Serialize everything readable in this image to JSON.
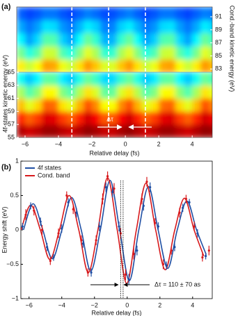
{
  "chart_data": [
    {
      "type": "heatmap",
      "panel_label": "(a)",
      "xlabel": "Relative delay (fs)",
      "ylabel": "4f-states kinetic energy (eV)",
      "y2label": "Cond.-band kinetic energy (eV)",
      "annotation": "Δτ",
      "colormap": "jet",
      "zlim": [
        0,
        1
      ],
      "xlim": [
        -6.5,
        5.2
      ],
      "xticks": [
        {
          "value": -6,
          "label": "−6"
        },
        {
          "value": -4,
          "label": "−4"
        },
        {
          "value": -2,
          "label": "−2"
        },
        0,
        2,
        4
      ],
      "ylim": [
        55,
        65
      ],
      "yticks": [
        55,
        57,
        59,
        61,
        63,
        65
      ],
      "y2lim": [
        82.5,
        92.5
      ],
      "y2ticks": [
        83,
        85,
        87,
        89,
        91
      ],
      "vlines": [
        -3.2,
        -1.0,
        1.2
      ],
      "x": [
        -6.25,
        -5.75,
        -5.25,
        -4.75,
        -4.25,
        -3.75,
        -3.25,
        -2.75,
        -2.25,
        -1.75,
        -1.25,
        -0.75,
        -0.25,
        0.25,
        0.75,
        1.25,
        1.75,
        2.25,
        2.75,
        3.25,
        3.75,
        4.25,
        4.75,
        5.25
      ],
      "y": [
        56,
        58,
        60,
        62,
        64
      ],
      "z": [
        [
          0.95,
          0.92,
          0.94,
          0.97,
          0.97,
          0.94,
          0.92,
          0.95,
          0.98,
          0.96,
          0.93,
          0.93,
          0.96,
          0.98,
          0.95,
          0.92,
          0.94,
          0.97,
          0.97,
          0.94,
          0.92,
          0.95,
          0.98,
          0.97
        ],
        [
          0.84,
          0.78,
          0.82,
          0.91,
          0.9,
          0.82,
          0.78,
          0.85,
          0.92,
          0.88,
          0.79,
          0.79,
          0.88,
          0.92,
          0.85,
          0.78,
          0.82,
          0.9,
          0.91,
          0.82,
          0.78,
          0.84,
          0.92,
          0.89
        ],
        [
          0.69,
          0.6,
          0.66,
          0.78,
          0.77,
          0.65,
          0.6,
          0.7,
          0.8,
          0.74,
          0.62,
          0.62,
          0.74,
          0.8,
          0.7,
          0.6,
          0.65,
          0.77,
          0.78,
          0.66,
          0.6,
          0.69,
          0.8,
          0.75
        ],
        [
          0.54,
          0.45,
          0.51,
          0.63,
          0.62,
          0.5,
          0.45,
          0.55,
          0.65,
          0.59,
          0.47,
          0.47,
          0.59,
          0.65,
          0.55,
          0.45,
          0.5,
          0.62,
          0.63,
          0.51,
          0.45,
          0.54,
          0.65,
          0.6
        ],
        [
          0.39,
          0.32,
          0.37,
          0.47,
          0.46,
          0.36,
          0.32,
          0.4,
          0.48,
          0.43,
          0.34,
          0.34,
          0.43,
          0.48,
          0.4,
          0.32,
          0.36,
          0.46,
          0.47,
          0.37,
          0.32,
          0.39,
          0.48,
          0.44
        ]
      ],
      "y2": [
        83.5,
        85.5,
        87.5,
        89.5,
        91.5
      ],
      "z2": [
        [
          0.64,
          0.57,
          0.62,
          0.72,
          0.71,
          0.61,
          0.57,
          0.65,
          0.73,
          0.68,
          0.59,
          0.59,
          0.68,
          0.73,
          0.65,
          0.57,
          0.61,
          0.71,
          0.72,
          0.62,
          0.57,
          0.64,
          0.73,
          0.69
        ],
        [
          0.49,
          0.4,
          0.46,
          0.58,
          0.57,
          0.45,
          0.4,
          0.5,
          0.6,
          0.54,
          0.42,
          0.42,
          0.54,
          0.6,
          0.5,
          0.4,
          0.45,
          0.57,
          0.58,
          0.46,
          0.4,
          0.49,
          0.6,
          0.55
        ],
        [
          0.37,
          0.28,
          0.34,
          0.46,
          0.45,
          0.33,
          0.28,
          0.38,
          0.48,
          0.42,
          0.3,
          0.3,
          0.42,
          0.48,
          0.38,
          0.28,
          0.33,
          0.45,
          0.46,
          0.34,
          0.28,
          0.37,
          0.48,
          0.43
        ],
        [
          0.29,
          0.24,
          0.28,
          0.35,
          0.34,
          0.27,
          0.24,
          0.3,
          0.36,
          0.33,
          0.25,
          0.25,
          0.33,
          0.36,
          0.3,
          0.24,
          0.27,
          0.34,
          0.35,
          0.28,
          0.24,
          0.29,
          0.36,
          0.33
        ],
        [
          0.22,
          0.19,
          0.21,
          0.24,
          0.24,
          0.21,
          0.19,
          0.22,
          0.25,
          0.23,
          0.2,
          0.2,
          0.23,
          0.25,
          0.22,
          0.19,
          0.21,
          0.24,
          0.24,
          0.21,
          0.19,
          0.22,
          0.25,
          0.24
        ]
      ]
    },
    {
      "type": "line",
      "panel_label": "(b)",
      "xlabel": "Relative delay (fs)",
      "ylabel": "Energy shift (eV)",
      "annotation": "Δτ = 110 ± 70 as",
      "legend": "upper left",
      "xlim": [
        -6.5,
        5.2
      ],
      "xticks": [
        {
          "value": -6,
          "label": "−6"
        },
        {
          "value": -4,
          "label": "−4"
        },
        {
          "value": -2,
          "label": "−2"
        },
        0,
        2,
        4
      ],
      "ylim": [
        -1,
        1
      ],
      "yticks": [
        {
          "value": -1,
          "label": "−1"
        },
        {
          "value": -0.5,
          "label": "−0.5"
        },
        0,
        0.5,
        1
      ],
      "vlines": [
        -0.4,
        -0.25
      ],
      "series": [
        {
          "name": "4f states",
          "color": "#1f4ea3",
          "fit_x": [
            -6.34,
            -5.75,
            -5.16,
            -4.58,
            -3.99,
            -3.4,
            -2.81,
            -2.23,
            -1.64,
            -1.05,
            -0.46,
            0.13,
            0.71,
            1.3,
            1.89,
            2.48,
            3.06,
            3.65,
            4.24,
            4.83
          ],
          "fit": [
            0,
            0.38,
            0,
            -0.42,
            0,
            0.47,
            0,
            -0.6,
            0,
            0.72,
            0,
            -0.74,
            0,
            0.63,
            0,
            -0.56,
            0,
            0.42,
            0,
            -0.36
          ],
          "x": [
            -6.4,
            -5.9,
            -5.3,
            -4.9,
            -4.5,
            -4.0,
            -3.6,
            -3.1,
            -2.7,
            -2.2,
            -1.7,
            -1.3,
            -0.9,
            -0.5,
            0.1,
            0.6,
            1.0,
            1.4,
            1.9,
            2.4,
            2.9,
            3.4,
            3.8,
            4.3,
            4.8
          ],
          "values": [
            0.05,
            0.35,
            0.12,
            -0.25,
            -0.4,
            0.02,
            0.4,
            0.25,
            -0.2,
            -0.62,
            0.05,
            0.62,
            0.55,
            0.05,
            -0.72,
            -0.3,
            0.35,
            0.62,
            0.05,
            -0.52,
            -0.25,
            0.32,
            0.4,
            -0.05,
            -0.38
          ],
          "errors": [
            0.05,
            0.05,
            0.06,
            0.06,
            0.05,
            0.06,
            0.06,
            0.07,
            0.06,
            0.06,
            0.07,
            0.07,
            0.08,
            0.07,
            0.08,
            0.07,
            0.07,
            0.07,
            0.06,
            0.06,
            0.06,
            0.06,
            0.05,
            0.06,
            0.05
          ]
        },
        {
          "name": "Cond. band",
          "color": "#d7191c",
          "fit_x": [
            -6.49,
            -5.9,
            -5.31,
            -4.73,
            -4.14,
            -3.55,
            -2.96,
            -2.38,
            -1.79,
            -1.2,
            -0.61,
            -0.03,
            0.56,
            1.15,
            1.74,
            2.33,
            2.91,
            3.5,
            4.09,
            4.68
          ],
          "fit": [
            0,
            0.36,
            0,
            -0.43,
            0,
            0.5,
            0,
            -0.62,
            0,
            0.76,
            0,
            -0.78,
            0,
            0.68,
            0,
            -0.58,
            0,
            0.46,
            0,
            -0.38
          ],
          "x": [
            -6.2,
            -5.7,
            -5.2,
            -4.7,
            -4.2,
            -3.7,
            -3.3,
            -2.8,
            -2.4,
            -1.9,
            -1.5,
            -1.2,
            -0.8,
            -0.4,
            -0.1,
            0.4,
            0.9,
            1.2,
            1.7,
            2.2,
            2.7,
            3.2,
            3.6,
            4.1,
            4.6,
            5.0
          ],
          "values": [
            0.22,
            0.28,
            0.0,
            -0.45,
            -0.05,
            0.5,
            0.3,
            -0.15,
            -0.62,
            -0.15,
            0.45,
            0.78,
            0.6,
            -0.05,
            -0.65,
            -0.35,
            0.45,
            0.7,
            0.1,
            -0.5,
            -0.3,
            0.25,
            0.45,
            0.05,
            -0.4,
            -0.3
          ],
          "errors": [
            0.08,
            0.07,
            0.07,
            0.06,
            0.07,
            0.06,
            0.07,
            0.07,
            0.06,
            0.07,
            0.08,
            0.07,
            0.08,
            0.08,
            0.08,
            0.08,
            0.08,
            0.07,
            0.07,
            0.07,
            0.06,
            0.07,
            0.06,
            0.07,
            0.06,
            0.07
          ]
        }
      ]
    }
  ]
}
